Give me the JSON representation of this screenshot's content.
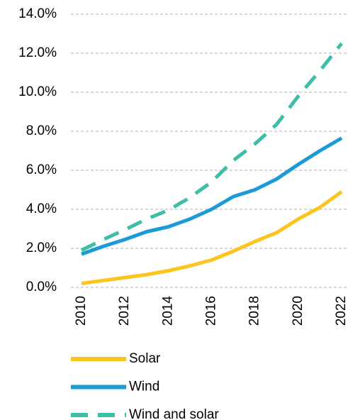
{
  "chart_data": {
    "type": "line",
    "x": [
      2010,
      2011,
      2012,
      2013,
      2014,
      2015,
      2016,
      2017,
      2018,
      2019,
      2020,
      2021,
      2022
    ],
    "xlim": [
      2010,
      2022
    ],
    "xticks": [
      2010,
      2012,
      2014,
      2016,
      2018,
      2020,
      2022
    ],
    "ylim": [
      0,
      14
    ],
    "yticks": [
      {
        "value": 0,
        "label": "0.0%"
      },
      {
        "value": 2,
        "label": "2.0%"
      },
      {
        "value": 4,
        "label": "4.0%"
      },
      {
        "value": 6,
        "label": "6.0%"
      },
      {
        "value": 8,
        "label": "8.0%"
      },
      {
        "value": 10,
        "label": "10.0%"
      },
      {
        "value": 12,
        "label": "12.0%"
      },
      {
        "value": 14,
        "label": "14.0%"
      }
    ],
    "grid": true,
    "series": [
      {
        "name": "Solar",
        "color": "#fcc51e",
        "linestyle": "solid",
        "values": [
          0.2,
          0.35,
          0.5,
          0.65,
          0.85,
          1.1,
          1.4,
          1.85,
          2.35,
          2.8,
          3.5,
          4.1,
          4.9
        ]
      },
      {
        "name": "Wind",
        "color": "#1a9ad6",
        "linestyle": "solid",
        "values": [
          1.7,
          2.1,
          2.45,
          2.85,
          3.1,
          3.5,
          4.0,
          4.65,
          5.0,
          5.55,
          6.3,
          7.0,
          7.65
        ]
      },
      {
        "name": "Wind and solar",
        "color": "#3dbea6",
        "linestyle": "dashed",
        "values": [
          1.9,
          2.45,
          2.95,
          3.5,
          3.95,
          4.6,
          5.4,
          6.5,
          7.35,
          8.35,
          9.8,
          11.1,
          12.5
        ]
      }
    ]
  }
}
